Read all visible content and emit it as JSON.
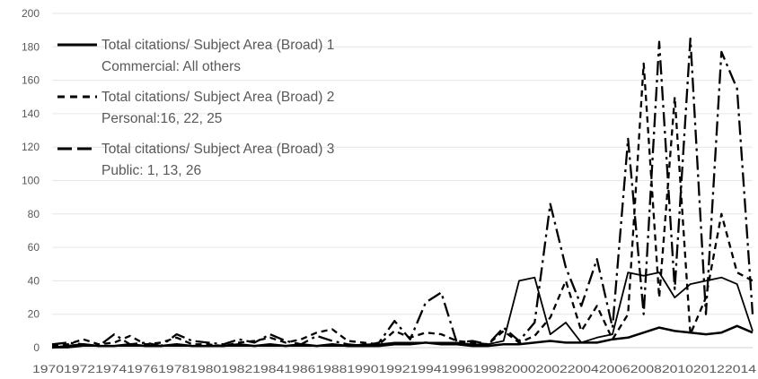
{
  "chart_data": {
    "type": "line",
    "grid": true,
    "legend_position": "top-left",
    "ylim": [
      0,
      200
    ],
    "yticks": [
      "0",
      "20",
      "40",
      "60",
      "80",
      "100",
      "120",
      "140",
      "160",
      "180",
      "200"
    ],
    "x": [
      "1970",
      "1971",
      "1972",
      "1973",
      "1974",
      "1975",
      "1976",
      "1977",
      "1978",
      "1979",
      "1980",
      "1981",
      "1982",
      "1983",
      "1984",
      "1985",
      "1986",
      "1987",
      "1988",
      "1989",
      "1990",
      "1991",
      "1992",
      "1993",
      "1994",
      "1995",
      "1996",
      "1997",
      "1998",
      "1999",
      "2000",
      "2001",
      "2002",
      "2003",
      "2004",
      "2005",
      "2006",
      "2007",
      "2008",
      "2009",
      "2010",
      "2011",
      "2012",
      "2013",
      "2014",
      "2015"
    ],
    "xtick_labels": [
      "1970",
      "1972",
      "1974",
      "1976",
      "1978",
      "1980",
      "1982",
      "1984",
      "1986",
      "1988",
      "1990",
      "1992",
      "1994",
      "1996",
      "1998",
      "2000",
      "2002",
      "2004",
      "2006",
      "2008",
      "2010",
      "2012",
      "2014"
    ],
    "series": [
      {
        "name_line1": "Total citations/ Subject Area (Broad)  1",
        "name_line2": "Commercial: All others",
        "style": "solid",
        "color": "#000000",
        "values": [
          0,
          1,
          2,
          1,
          1,
          2,
          1,
          1,
          2,
          1,
          1,
          1,
          2,
          1,
          2,
          1,
          2,
          1,
          2,
          1,
          1,
          1,
          2,
          2,
          3,
          2,
          2,
          1,
          1,
          2,
          2,
          3,
          4,
          3,
          3,
          3,
          5,
          6,
          9,
          12,
          10,
          9,
          8,
          9,
          13,
          9
        ]
      },
      {
        "name_line1": "Total citations/ Subject Area (Broad)  2",
        "name_line2": "Personal:16, 22, 25",
        "style": "dashed",
        "color": "#000000",
        "values": [
          1,
          2,
          5,
          2,
          3,
          7,
          2,
          3,
          6,
          2,
          2,
          1,
          3,
          4,
          6,
          3,
          5,
          9,
          11,
          4,
          3,
          2,
          10,
          6,
          9,
          8,
          4,
          3,
          2,
          10,
          3,
          7,
          18,
          40,
          10,
          25,
          5,
          20,
          170,
          30,
          150,
          8,
          30,
          80,
          45,
          40
        ]
      },
      {
        "name_line1": "Total citations/ Subject Area (Broad)  3",
        "name_line2": "Public: 1, 13, 26",
        "style": "dash-dot",
        "color": "#000000",
        "values": [
          2,
          3,
          2,
          1,
          8,
          2,
          3,
          1,
          8,
          4,
          3,
          2,
          5,
          3,
          8,
          4,
          2,
          7,
          4,
          2,
          1,
          3,
          16,
          5,
          27,
          33,
          3,
          4,
          2,
          12,
          4,
          15,
          86,
          48,
          25,
          53,
          12,
          125,
          20,
          183,
          35,
          185,
          20,
          177,
          155,
          20
        ]
      },
      {
        "style": "solid-secondary",
        "color": "#000000",
        "values": [
          0,
          0,
          1,
          1,
          1,
          1,
          1,
          1,
          1,
          1,
          1,
          1,
          1,
          1,
          1,
          1,
          1,
          1,
          1,
          1,
          2,
          2,
          3,
          3,
          3,
          3,
          3,
          2,
          2,
          4,
          40,
          42,
          8,
          15,
          3,
          6,
          8,
          45,
          43,
          45,
          30,
          38,
          40,
          42,
          38,
          10
        ]
      }
    ]
  }
}
